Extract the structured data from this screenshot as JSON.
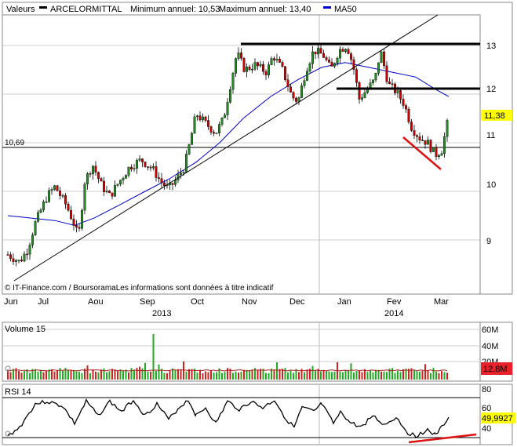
{
  "header": {
    "values_label": "Valeurs",
    "stock_name": "ARCELORMITTAL",
    "min_label": "Minimum annuel: 10,53",
    "max_label": "Maximum annuel: 13,40",
    "ma_label": "MA50",
    "ma_color": "#0000cc"
  },
  "price_panel": {
    "y_ticks": [
      "13",
      "12",
      "11",
      "10",
      "9"
    ],
    "y_tick_values": [
      13,
      12,
      11,
      10,
      9
    ],
    "ylim": [
      8.3,
      13.55
    ],
    "support_label": "10,69",
    "support_value": 10.69,
    "last_price": "11,38",
    "resistance_levels": [
      13.0,
      12.0
    ],
    "credit": "IT-Finance.com / BoursoramaLes informations sont données à titre indicatif"
  },
  "x_axis": {
    "months": [
      "Jun",
      "Jul",
      "Aou",
      "Sep",
      "Oct",
      "Nov",
      "Dec",
      "Jan",
      "Fev",
      "Mar"
    ],
    "years": [
      "2013",
      "2014"
    ]
  },
  "volume_panel": {
    "label": "Volume 15",
    "y_ticks": [
      "60M",
      "40M",
      "20M"
    ],
    "last_value": "12,8M"
  },
  "rsi_panel": {
    "label": "RSI 14",
    "y_ticks": [
      "80",
      "60",
      "40"
    ],
    "last_value": "49,9927"
  },
  "chart_data": {
    "type": "candlestick",
    "title": "ARCELORMITTAL",
    "x": [
      "Jun 2013",
      "Jul 2013",
      "Aou 2013",
      "Sep 2013",
      "Oct 2013",
      "Nov 2013",
      "Dec 2013",
      "Jan 2014",
      "Fev 2014",
      "Mar 2014"
    ],
    "series": [
      {
        "name": "Valeurs",
        "values": [
          8.6,
          9.3,
          10.0,
          10.5,
          11.9,
          12.6,
          12.0,
          12.8,
          11.8,
          11.38
        ]
      },
      {
        "name": "MA50",
        "values": [
          9.5,
          9.4,
          9.6,
          10.0,
          10.6,
          11.6,
          12.3,
          12.6,
          12.4,
          11.9
        ]
      }
    ],
    "ylim": [
      8.3,
      13.55
    ],
    "grid": true
  }
}
